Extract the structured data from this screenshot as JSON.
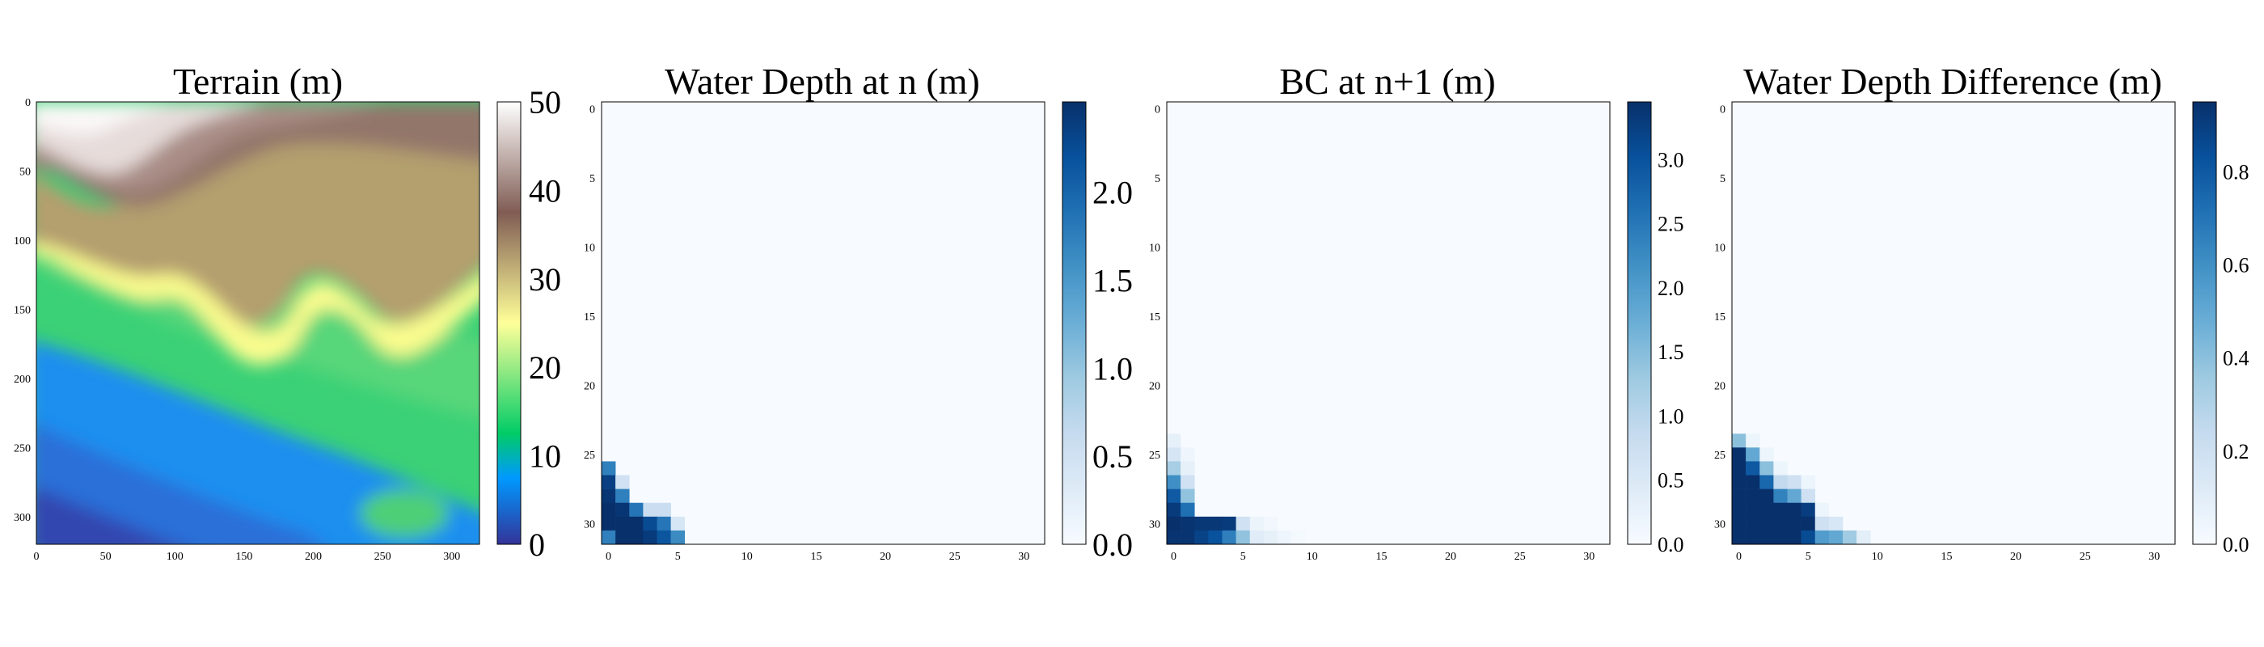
{
  "figure": {
    "panels": [
      {
        "title": "Terrain (m)",
        "colormap": "terrain",
        "x_ticks": [
          "0",
          "50",
          "100",
          "150",
          "200",
          "250",
          "300"
        ],
        "y_ticks": [
          "0",
          "50",
          "100",
          "150",
          "200",
          "250",
          "300"
        ],
        "colorbar_ticks": [
          "0",
          "10",
          "20",
          "30",
          "40",
          "50"
        ]
      },
      {
        "title": "Water Depth at n (m)",
        "colormap": "Blues",
        "x_ticks": [
          "0",
          "5",
          "10",
          "15",
          "20",
          "25",
          "30"
        ],
        "y_ticks": [
          "0",
          "5",
          "10",
          "15",
          "20",
          "25",
          "30"
        ],
        "colorbar_ticks": [
          "0.0",
          "0.5",
          "1.0",
          "1.5",
          "2.0"
        ]
      },
      {
        "title": "BC at n+1 (m)",
        "colormap": "Blues",
        "x_ticks": [
          "0",
          "5",
          "10",
          "15",
          "20",
          "25",
          "30"
        ],
        "y_ticks": [
          "0",
          "5",
          "10",
          "15",
          "20",
          "25",
          "30"
        ],
        "colorbar_ticks": [
          "0.0",
          "0.5",
          "1.0",
          "1.5",
          "2.0",
          "2.5",
          "3.0"
        ]
      },
      {
        "title": "Water Depth Difference (m)",
        "colormap": "Blues",
        "x_ticks": [
          "0",
          "5",
          "10",
          "15",
          "20",
          "25",
          "30"
        ],
        "y_ticks": [
          "0",
          "5",
          "10",
          "15",
          "20",
          "25",
          "30"
        ],
        "colorbar_ticks": [
          "0.0",
          "0.2",
          "0.4",
          "0.6",
          "0.8"
        ]
      }
    ]
  },
  "chart_data": [
    {
      "type": "heatmap",
      "title": "Terrain (m)",
      "xlabel": "",
      "ylabel": "",
      "grid_size": [
        320,
        320
      ],
      "xlim": [
        0,
        320
      ],
      "ylim": [
        320,
        0
      ],
      "x_ticks": [
        0,
        50,
        100,
        150,
        200,
        250,
        300
      ],
      "y_ticks": [
        0,
        50,
        100,
        150,
        200,
        250,
        300
      ],
      "colormap": "terrain",
      "color_range": [
        0,
        50
      ],
      "colorbar_ticks": [
        0,
        10,
        20,
        30,
        40,
        50
      ],
      "grid": false
    },
    {
      "type": "heatmap",
      "title": "Water Depth at n (m)",
      "xlabel": "",
      "ylabel": "",
      "grid_size": [
        32,
        32
      ],
      "xlim": [
        -0.5,
        31.5
      ],
      "ylim": [
        31.5,
        -0.5
      ],
      "x_ticks": [
        0,
        5,
        10,
        15,
        20,
        25,
        30
      ],
      "y_ticks": [
        0,
        5,
        10,
        15,
        20,
        25,
        30
      ],
      "colormap": "Blues",
      "color_range": [
        0,
        2.45
      ],
      "colorbar_ticks": [
        0.0,
        0.5,
        1.0,
        1.5,
        2.0
      ],
      "background_value": 0,
      "cells": [
        {
          "row": 26,
          "col": 0,
          "value": 1.7
        },
        {
          "row": 27,
          "col": 0,
          "value": 2.3
        },
        {
          "row": 27,
          "col": 1,
          "value": 0.5
        },
        {
          "row": 28,
          "col": 0,
          "value": 2.4
        },
        {
          "row": 28,
          "col": 1,
          "value": 1.7
        },
        {
          "row": 29,
          "col": 0,
          "value": 2.45
        },
        {
          "row": 29,
          "col": 1,
          "value": 2.4
        },
        {
          "row": 29,
          "col": 2,
          "value": 1.8
        },
        {
          "row": 29,
          "col": 3,
          "value": 0.55
        },
        {
          "row": 29,
          "col": 4,
          "value": 0.55
        },
        {
          "row": 30,
          "col": 0,
          "value": 2.45
        },
        {
          "row": 30,
          "col": 1,
          "value": 2.45
        },
        {
          "row": 30,
          "col": 2,
          "value": 2.45
        },
        {
          "row": 30,
          "col": 3,
          "value": 2.2
        },
        {
          "row": 30,
          "col": 4,
          "value": 1.8
        },
        {
          "row": 30,
          "col": 5,
          "value": 0.4
        },
        {
          "row": 31,
          "col": 0,
          "value": 1.7
        },
        {
          "row": 31,
          "col": 1,
          "value": 2.45
        },
        {
          "row": 31,
          "col": 2,
          "value": 2.45
        },
        {
          "row": 31,
          "col": 3,
          "value": 2.35
        },
        {
          "row": 31,
          "col": 4,
          "value": 2.1
        },
        {
          "row": 31,
          "col": 5,
          "value": 1.6
        }
      ]
    },
    {
      "type": "heatmap",
      "title": "BC at n+1 (m)",
      "xlabel": "",
      "ylabel": "",
      "grid_size": [
        32,
        32
      ],
      "xlim": [
        -0.5,
        31.5
      ],
      "ylim": [
        31.5,
        -0.5
      ],
      "x_ticks": [
        0,
        5,
        10,
        15,
        20,
        25,
        30
      ],
      "y_ticks": [
        0,
        5,
        10,
        15,
        20,
        25,
        30
      ],
      "colormap": "Blues",
      "color_range": [
        0,
        3.45
      ],
      "colorbar_ticks": [
        0.0,
        0.5,
        1.0,
        1.5,
        2.0,
        2.5,
        3.0
      ],
      "background_value": 0,
      "cells": [
        {
          "row": 24,
          "col": 0,
          "value": 0.3
        },
        {
          "row": 25,
          "col": 0,
          "value": 0.6
        },
        {
          "row": 25,
          "col": 1,
          "value": 0.15
        },
        {
          "row": 26,
          "col": 0,
          "value": 1.2
        },
        {
          "row": 26,
          "col": 1,
          "value": 0.3
        },
        {
          "row": 27,
          "col": 0,
          "value": 2.2
        },
        {
          "row": 27,
          "col": 1,
          "value": 0.7
        },
        {
          "row": 28,
          "col": 0,
          "value": 2.9
        },
        {
          "row": 28,
          "col": 1,
          "value": 1.4
        },
        {
          "row": 29,
          "col": 0,
          "value": 3.3
        },
        {
          "row": 29,
          "col": 1,
          "value": 2.6
        },
        {
          "row": 30,
          "col": 0,
          "value": 3.45
        },
        {
          "row": 30,
          "col": 1,
          "value": 3.4
        },
        {
          "row": 30,
          "col": 2,
          "value": 3.35
        },
        {
          "row": 30,
          "col": 3,
          "value": 3.35
        },
        {
          "row": 30,
          "col": 4,
          "value": 3.3
        },
        {
          "row": 30,
          "col": 5,
          "value": 0.7
        },
        {
          "row": 30,
          "col": 6,
          "value": 0.2
        },
        {
          "row": 30,
          "col": 7,
          "value": 0.1
        },
        {
          "row": 31,
          "col": 0,
          "value": 3.4
        },
        {
          "row": 31,
          "col": 1,
          "value": 3.4
        },
        {
          "row": 31,
          "col": 2,
          "value": 3.2
        },
        {
          "row": 31,
          "col": 3,
          "value": 3.0
        },
        {
          "row": 31,
          "col": 4,
          "value": 2.4
        },
        {
          "row": 31,
          "col": 5,
          "value": 1.4
        },
        {
          "row": 31,
          "col": 6,
          "value": 0.4
        },
        {
          "row": 31,
          "col": 7,
          "value": 0.3
        },
        {
          "row": 31,
          "col": 8,
          "value": 0.15
        },
        {
          "row": 31,
          "col": 9,
          "value": 0.05
        }
      ]
    },
    {
      "type": "heatmap",
      "title": "Water Depth Difference (m)",
      "xlabel": "",
      "ylabel": "",
      "grid_size": [
        32,
        32
      ],
      "xlim": [
        -0.5,
        31.5
      ],
      "ylim": [
        31.5,
        -0.5
      ],
      "x_ticks": [
        0,
        5,
        10,
        15,
        20,
        25,
        30
      ],
      "y_ticks": [
        0,
        5,
        10,
        15,
        20,
        25,
        30
      ],
      "colormap": "Blues",
      "color_range": [
        0,
        0.95
      ],
      "colorbar_ticks": [
        0.0,
        0.2,
        0.4,
        0.6,
        0.8
      ],
      "background_value": 0,
      "cells": [
        {
          "row": 24,
          "col": 0,
          "value": 0.4
        },
        {
          "row": 24,
          "col": 1,
          "value": 0.05
        },
        {
          "row": 25,
          "col": 0,
          "value": 0.95
        },
        {
          "row": 25,
          "col": 1,
          "value": 0.5
        },
        {
          "row": 25,
          "col": 2,
          "value": 0.05
        },
        {
          "row": 26,
          "col": 0,
          "value": 0.95
        },
        {
          "row": 26,
          "col": 1,
          "value": 0.8
        },
        {
          "row": 26,
          "col": 2,
          "value": 0.4
        },
        {
          "row": 26,
          "col": 3,
          "value": 0.05
        },
        {
          "row": 27,
          "col": 0,
          "value": 0.95
        },
        {
          "row": 27,
          "col": 1,
          "value": 0.95
        },
        {
          "row": 27,
          "col": 2,
          "value": 0.75
        },
        {
          "row": 27,
          "col": 3,
          "value": 0.25
        },
        {
          "row": 27,
          "col": 4,
          "value": 0.2
        },
        {
          "row": 27,
          "col": 5,
          "value": 0.05
        },
        {
          "row": 28,
          "col": 0,
          "value": 0.95
        },
        {
          "row": 28,
          "col": 1,
          "value": 0.95
        },
        {
          "row": 28,
          "col": 2,
          "value": 0.95
        },
        {
          "row": 28,
          "col": 3,
          "value": 0.65
        },
        {
          "row": 28,
          "col": 4,
          "value": 0.5
        },
        {
          "row": 28,
          "col": 5,
          "value": 0.2
        },
        {
          "row": 29,
          "col": 0,
          "value": 0.95
        },
        {
          "row": 29,
          "col": 1,
          "value": 0.95
        },
        {
          "row": 29,
          "col": 2,
          "value": 0.95
        },
        {
          "row": 29,
          "col": 3,
          "value": 0.95
        },
        {
          "row": 29,
          "col": 4,
          "value": 0.95
        },
        {
          "row": 29,
          "col": 5,
          "value": 0.9
        },
        {
          "row": 29,
          "col": 6,
          "value": 0.05
        },
        {
          "row": 30,
          "col": 0,
          "value": 0.95
        },
        {
          "row": 30,
          "col": 1,
          "value": 0.95
        },
        {
          "row": 30,
          "col": 2,
          "value": 0.95
        },
        {
          "row": 30,
          "col": 3,
          "value": 0.95
        },
        {
          "row": 30,
          "col": 4,
          "value": 0.95
        },
        {
          "row": 30,
          "col": 5,
          "value": 0.95
        },
        {
          "row": 30,
          "col": 6,
          "value": 0.2
        },
        {
          "row": 30,
          "col": 7,
          "value": 0.15
        },
        {
          "row": 31,
          "col": 0,
          "value": 0.95
        },
        {
          "row": 31,
          "col": 1,
          "value": 0.95
        },
        {
          "row": 31,
          "col": 2,
          "value": 0.95
        },
        {
          "row": 31,
          "col": 3,
          "value": 0.95
        },
        {
          "row": 31,
          "col": 4,
          "value": 0.95
        },
        {
          "row": 31,
          "col": 5,
          "value": 0.85
        },
        {
          "row": 31,
          "col": 6,
          "value": 0.55
        },
        {
          "row": 31,
          "col": 7,
          "value": 0.5
        },
        {
          "row": 31,
          "col": 8,
          "value": 0.35
        },
        {
          "row": 31,
          "col": 9,
          "value": 0.1
        }
      ]
    }
  ]
}
